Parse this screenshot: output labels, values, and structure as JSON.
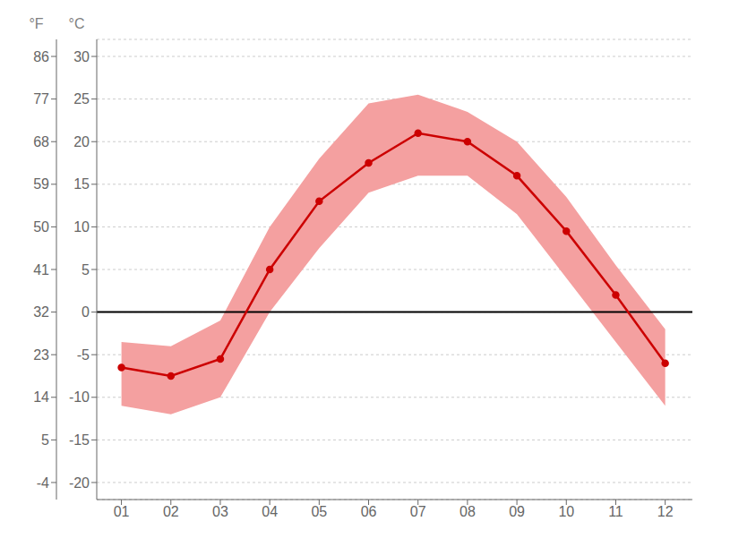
{
  "chart_data": {
    "type": "line",
    "ylabel": "°C",
    "y2label": "°F",
    "x": [
      1,
      2,
      3,
      4,
      5,
      6,
      7,
      8,
      9,
      10,
      11,
      12
    ],
    "xlim": [
      0.5,
      12.55
    ],
    "xticks": [
      {
        "value": 1,
        "label": "01"
      },
      {
        "value": 2,
        "label": "02"
      },
      {
        "value": 3,
        "label": "03"
      },
      {
        "value": 4,
        "label": "04"
      },
      {
        "value": 5,
        "label": "05"
      },
      {
        "value": 6,
        "label": "06"
      },
      {
        "value": 7,
        "label": "07"
      },
      {
        "value": 8,
        "label": "08"
      },
      {
        "value": 9,
        "label": "09"
      },
      {
        "value": 10,
        "label": "10"
      },
      {
        "value": 11,
        "label": "11"
      },
      {
        "value": 12,
        "label": "12"
      }
    ],
    "ylim": [
      -22,
      32
    ],
    "yticks": [
      -20,
      -15,
      -10,
      -5,
      0,
      5,
      10,
      15,
      20,
      25,
      30
    ],
    "y2lim": [
      -7.6,
      89.6
    ],
    "y2ticks": [
      -4,
      5,
      14,
      23,
      32,
      41,
      50,
      59,
      68,
      77,
      86
    ],
    "grid": true,
    "hlines": [
      {
        "y": 0,
        "color": "#000000"
      }
    ],
    "series": [
      {
        "type": "area",
        "color": "#f4a0a0",
        "low": [
          -11.0,
          -12.0,
          -10.0,
          0.0,
          7.5,
          14.0,
          16.0,
          16.0,
          11.5,
          4.0,
          -3.5,
          -11.0
        ],
        "high": [
          -3.5,
          -4.0,
          -1.0,
          10.0,
          18.0,
          24.5,
          25.5,
          23.5,
          20.0,
          13.5,
          5.5,
          -2.0
        ]
      },
      {
        "type": "line",
        "color": "#cc0000",
        "marker": "circle",
        "values": [
          -6.5,
          -7.5,
          -5.5,
          5.0,
          13.0,
          17.5,
          21.0,
          20.0,
          16.0,
          9.5,
          2.0,
          -6.0
        ]
      }
    ]
  }
}
